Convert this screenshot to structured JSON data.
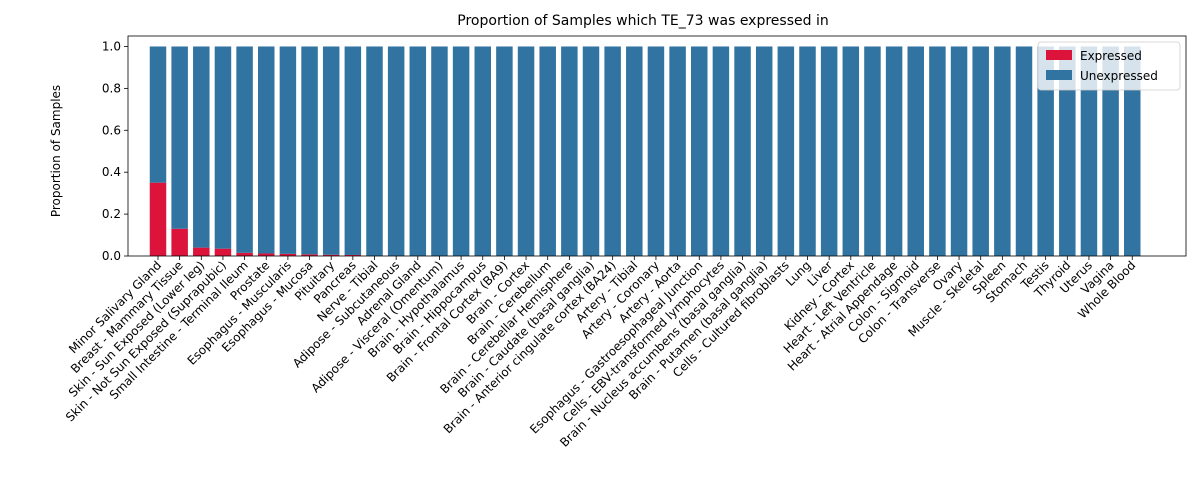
{
  "chart_data": {
    "type": "bar",
    "stacked": true,
    "title": "Proportion of Samples which TE_73 was expressed in",
    "xlabel": "",
    "ylabel": "Proportion of Samples",
    "ylim": [
      0,
      1.05
    ],
    "yticks": [
      "0.0",
      "0.2",
      "0.4",
      "0.6",
      "0.8",
      "1.0"
    ],
    "grid": false,
    "legend_placement": "top-right",
    "categories": [
      "Minor Salivary Gland",
      "Breast - Mammary Tissue",
      "Skin - Sun Exposed (Lower leg)",
      "Skin - Not Sun Exposed (Suprapubic)",
      "Small Intestine - Terminal Ileum",
      "Prostate",
      "Esophagus - Muscularis",
      "Esophagus - Mucosa",
      "Pituitary",
      "Pancreas",
      "Nerve - Tibial",
      "Adipose - Subcutaneous",
      "Adrenal Gland",
      "Adipose - Visceral (Omentum)",
      "Brain - Hypothalamus",
      "Brain - Hippocampus",
      "Brain - Frontal Cortex (BA9)",
      "Brain - Cortex",
      "Brain - Cerebellum",
      "Brain - Cerebellar Hemisphere",
      "Brain - Caudate (basal ganglia)",
      "Brain - Anterior cingulate cortex (BA24)",
      "Artery - Tibial",
      "Artery - Coronary",
      "Artery - Aorta",
      "Esophagus - Gastroesophageal Junction",
      "Cells - EBV-transformed lymphocytes",
      "Brain - Nucleus accumbens (basal ganglia)",
      "Brain - Putamen (basal ganglia)",
      "Cells - Cultured fibroblasts",
      "Lung",
      "Liver",
      "Kidney - Cortex",
      "Heart - Left Ventricle",
      "Heart - Atrial Appendage",
      "Colon - Sigmoid",
      "Colon - Transverse",
      "Ovary",
      "Muscle - Skeletal",
      "Spleen",
      "Stomach",
      "Testis",
      "Thyroid",
      "Uterus",
      "Vagina",
      "Whole Blood"
    ],
    "series": [
      {
        "name": "Expressed",
        "color": "#dc143c",
        "values": [
          0.35,
          0.13,
          0.04,
          0.035,
          0.015,
          0.012,
          0.01,
          0.008,
          0.006,
          0.005,
          0,
          0,
          0,
          0,
          0,
          0,
          0,
          0,
          0,
          0,
          0,
          0,
          0,
          0,
          0,
          0,
          0,
          0,
          0,
          0,
          0,
          0,
          0,
          0,
          0,
          0,
          0,
          0,
          0,
          0,
          0,
          0,
          0,
          0,
          0,
          0
        ]
      },
      {
        "name": "Unexpressed",
        "color": "#3274a1",
        "values": [
          0.65,
          0.87,
          0.96,
          0.965,
          0.985,
          0.988,
          0.99,
          0.992,
          0.994,
          0.995,
          1,
          1,
          1,
          1,
          1,
          1,
          1,
          1,
          1,
          1,
          1,
          1,
          1,
          1,
          1,
          1,
          1,
          1,
          1,
          1,
          1,
          1,
          1,
          1,
          1,
          1,
          1,
          1,
          1,
          1,
          1,
          1,
          1,
          1,
          1,
          1
        ]
      }
    ]
  }
}
